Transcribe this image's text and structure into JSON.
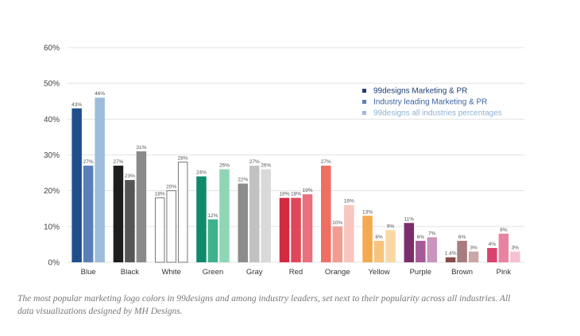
{
  "chart_data": {
    "type": "bar",
    "categories": [
      "Blue",
      "Black",
      "White",
      "Green",
      "Gray",
      "Red",
      "Orange",
      "Yellow",
      "Purple",
      "Brown",
      "Pink"
    ],
    "series": [
      {
        "name": "99designs Marketing & PR",
        "values": [
          43,
          27,
          18,
          24,
          22,
          18,
          27,
          13,
          11,
          1.4,
          4
        ]
      },
      {
        "name": "Industry leading Marketing & PR",
        "values": [
          27,
          23,
          20,
          12,
          27,
          18,
          10,
          6,
          6,
          6,
          8
        ]
      },
      {
        "name": "99designs all industries percentages",
        "values": [
          46,
          31,
          28,
          26,
          26,
          19,
          16,
          9,
          7,
          3,
          3
        ]
      }
    ],
    "data_labels": [
      [
        "43%",
        "27%",
        "18%",
        "24%",
        "22%",
        "18%",
        "27%",
        "13%",
        "11%",
        "1.4%",
        "4%"
      ],
      [
        "27%",
        "23%",
        "20%",
        "12%",
        "27%",
        "18%",
        "10%",
        "6%",
        "6%",
        "6%",
        "8%"
      ],
      [
        "46%",
        "31%",
        "28%",
        "26%",
        "26%",
        "19%",
        "16%",
        "9%",
        "7%",
        "3%",
        "3%"
      ]
    ],
    "ylim": [
      0,
      60
    ],
    "yticks": [
      "0%",
      "10%",
      "20%",
      "30%",
      "40%",
      "50%",
      "60%"
    ],
    "grid": true,
    "legend_position": "top-right",
    "colors": [
      [
        "#1f4e8c",
        "#5a7fb8",
        "#9dbcd9"
      ],
      [
        "#1d1d1d",
        "#555555",
        "#8a8a8a"
      ],
      [
        "#ffffff",
        "#ffffff",
        "#ffffff"
      ],
      [
        "#0f8a6c",
        "#3cb38a",
        "#8fd6b4"
      ],
      [
        "#8c8c8c",
        "#c2c2c2",
        "#d9d9d9"
      ],
      [
        "#d42a3f",
        "#e0475a",
        "#ea6f7f"
      ],
      [
        "#ef6f63",
        "#f39c92",
        "#f8c6bf"
      ],
      [
        "#f5a94e",
        "#f7c47e",
        "#fad8a6"
      ],
      [
        "#7b2e6b",
        "#a65a95",
        "#c995bc"
      ],
      [
        "#8a4a4a",
        "#a87c7c",
        "#c8a8a8"
      ],
      [
        "#d9436e",
        "#e883a2",
        "#f4c2d1"
      ]
    ],
    "legend_colors": [
      "#1f3f73",
      "#5a7fb8",
      "#9dbcd9"
    ],
    "legend_text_colors": [
      "#1f3f73",
      "#3b63a3",
      "#8fb2d4"
    ]
  },
  "caption": "The most popular marketing logo colors in 99designs and among industry leaders, set next to their popularity across all industries. All data visualizations designed by MH Designs."
}
